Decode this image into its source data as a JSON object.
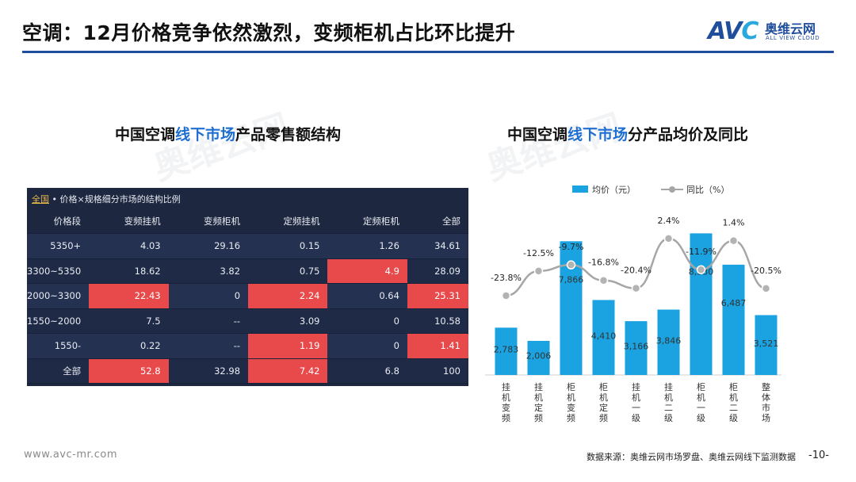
{
  "header": {
    "title": "空调：12月价格竞争依然激烈，变频柜机占比环比提升",
    "logo_mark": "AVC",
    "logo_cn": "奥维云网",
    "logo_en": "ALL VIEW CLOUD",
    "brand_color": "#1f4e9c"
  },
  "watermark": {
    "text": "奥维云网",
    "sub": "ALL VIEW CLOUD"
  },
  "left": {
    "title_pre": "中国空调",
    "title_hl": "线下市场",
    "title_post": "产品零售额结构",
    "panel_scope": "全国",
    "panel_caption": " • 价格×规格细分市场的结构比例",
    "table": {
      "headers": [
        "价格段",
        "变频挂机",
        "变频柜机",
        "定频挂机",
        "定频柜机",
        "全部"
      ],
      "rows": [
        [
          "5350+",
          "4.03",
          "29.16",
          "0.15",
          "1.26",
          "34.61"
        ],
        [
          "3300~5350",
          "18.62",
          "3.82",
          "0.75",
          "4.9",
          "28.09"
        ],
        [
          "2000~3300",
          "22.43",
          "0",
          "2.24",
          "0.64",
          "25.31"
        ],
        [
          "1550~2000",
          "7.5",
          "--",
          "3.09",
          "0",
          "10.58"
        ],
        [
          "1550-",
          "0.22",
          "--",
          "1.19",
          "0",
          "1.41"
        ],
        [
          "全部",
          "52.8",
          "32.98",
          "7.42",
          "6.8",
          "100"
        ]
      ],
      "highlight": [
        [
          1,
          4
        ],
        [
          2,
          1
        ],
        [
          2,
          3
        ],
        [
          2,
          5
        ],
        [
          4,
          3
        ],
        [
          4,
          5
        ],
        [
          5,
          1
        ],
        [
          5,
          3
        ]
      ],
      "highlight_color": "#e8494a"
    }
  },
  "right": {
    "title_pre": "中国空调",
    "title_hl": "线下市场",
    "title_post": "分产品均价及同比"
  },
  "chart_data": {
    "type": "bar",
    "categories": [
      "挂机变频",
      "挂机定频",
      "柜机变频",
      "柜机定频",
      "挂机一级",
      "挂机二级",
      "柜机一级",
      "柜机二级",
      "整体市场"
    ],
    "series": [
      {
        "name": "均价（元）",
        "type": "bar",
        "color": "#1aa3e0",
        "values": [
          2783,
          2006,
          7866,
          4410,
          3166,
          3846,
          8330,
          6487,
          3521
        ],
        "labels": [
          "2,783",
          "2,006",
          "7,866",
          "4,410",
          "3,166",
          "3,846",
          "8,330",
          "6,487",
          "3,521"
        ]
      },
      {
        "name": "同比（%）",
        "type": "line",
        "color": "#a6a6a6",
        "values": [
          -23.8,
          -12.5,
          -9.7,
          -16.8,
          -20.4,
          2.4,
          -11.9,
          1.4,
          -20.5
        ],
        "labels": [
          "-23.8%",
          "-12.5%",
          "-9.7%",
          "-16.8%",
          "-20.4%",
          "2.4%",
          "-11.9%",
          "1.4%",
          "-20.5%"
        ]
      }
    ],
    "ylim_bar": [
      0,
      9000
    ],
    "ylim_line": [
      -30,
      10
    ],
    "legend": "top"
  },
  "footer": {
    "url": "www.avc-mr.com",
    "source": "数据来源：奥维云网市场罗盘、奥维云网线下监测数据",
    "page": "-10-"
  }
}
